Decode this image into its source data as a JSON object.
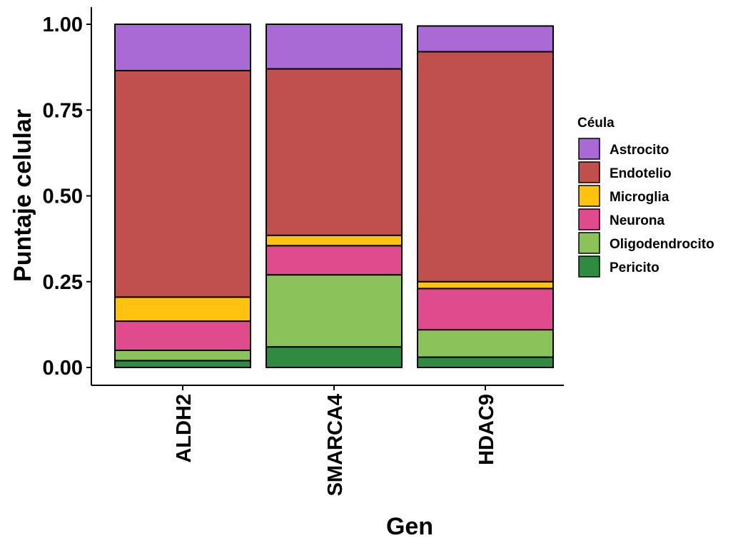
{
  "chart_data": {
    "type": "bar",
    "stacked": true,
    "xlabel": "Gen",
    "ylabel": "Puntaje celular",
    "ylim": [
      0,
      1
    ],
    "yticks": [
      "0.00",
      "0.25",
      "0.50",
      "0.75",
      "1.00"
    ],
    "categories": [
      "ALDH2",
      "SMARCA4",
      "HDAC9"
    ],
    "legend": {
      "title": "Céula",
      "placement": "right"
    },
    "grid": false,
    "series": [
      {
        "name": "Pericito",
        "color": "#2e8b3f",
        "values": [
          0.02,
          0.06,
          0.03
        ]
      },
      {
        "name": "Oligodendrocito",
        "color": "#8bc25a",
        "values": [
          0.03,
          0.21,
          0.08
        ]
      },
      {
        "name": "Neurona",
        "color": "#df4b8c",
        "values": [
          0.085,
          0.085,
          0.12
        ]
      },
      {
        "name": "Microglia",
        "color": "#ffc20e",
        "values": [
          0.07,
          0.03,
          0.02
        ]
      },
      {
        "name": "Endotelio",
        "color": "#c0504d",
        "values": [
          0.66,
          0.485,
          0.67
        ]
      },
      {
        "name": "Astrocito",
        "color": "#a96ad6",
        "values": [
          0.135,
          0.13,
          0.075
        ]
      }
    ]
  }
}
